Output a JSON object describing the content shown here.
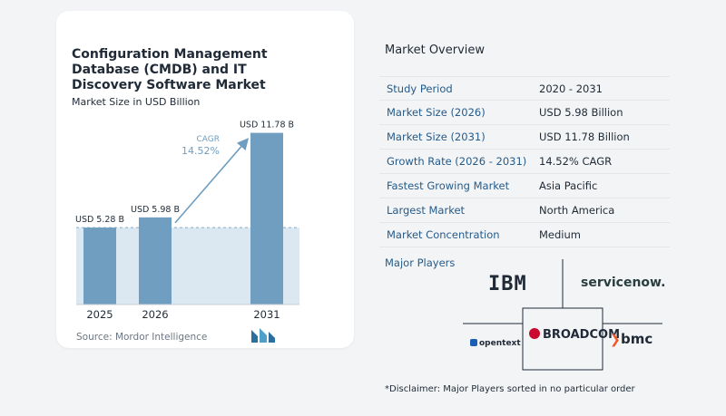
{
  "chart_data": {
    "type": "bar",
    "title": "Configuration Management Database (CMDB) and IT Discovery Software Market",
    "subtitle": "Market Size in USD Billion",
    "categories": [
      "2025",
      "2026",
      "2031"
    ],
    "values": [
      5.28,
      5.98,
      11.78
    ],
    "value_labels": [
      "USD 5.28 B",
      "USD 5.98 B",
      "USD 11.78 B"
    ],
    "cagr_label": "CAGR",
    "cagr_value": "14.52%",
    "ylim": [
      0,
      12.5
    ],
    "bar_color": "#6f9ec0",
    "band_color": "#dce8f1"
  },
  "source": "Source: Mordor Intelligence",
  "overview": {
    "title": "Market Overview",
    "rows": [
      {
        "label": "Study Period",
        "value": "2020 - 2031"
      },
      {
        "label": "Market Size (2026)",
        "value": "USD 5.98 Billion"
      },
      {
        "label": "Market Size (2031)",
        "value": "USD 11.78 Billion"
      },
      {
        "label": "Growth Rate (2026 - 2031)",
        "value": "14.52% CAGR"
      },
      {
        "label": "Fastest Growing Market",
        "value": "Asia Pacific"
      },
      {
        "label": "Largest Market",
        "value": "North America"
      },
      {
        "label": "Market Concentration",
        "value": "Medium"
      }
    ]
  },
  "major_players": {
    "title": "Major Players",
    "players": [
      "IBM",
      "servicenow.",
      "BROADCOM",
      "opentext",
      "bmc"
    ]
  },
  "disclaimer": "*Disclaimer: Major Players sorted in no particular order",
  "colors": {
    "label_blue": "#245b8a",
    "accent_blue": "#5b8fb9"
  }
}
